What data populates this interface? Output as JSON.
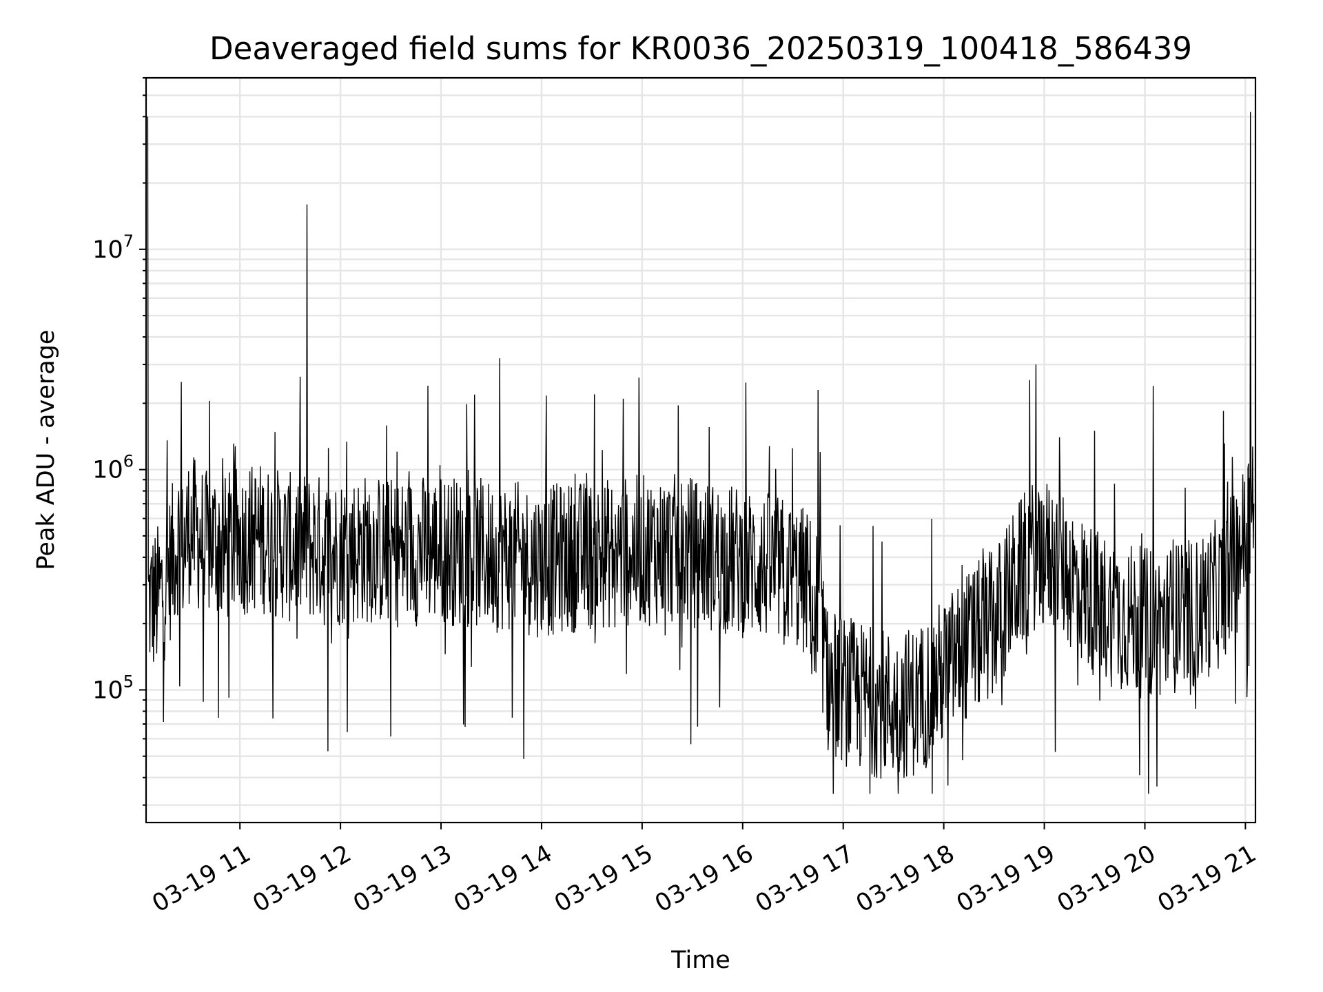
{
  "chart_data": {
    "type": "line",
    "title": "Deaveraged field sums for KR0036_20250319_100418_586439",
    "xlabel": "Time",
    "ylabel": "Peak ADU - average",
    "yscale": "log",
    "ylim": [
      25000,
      60000000
    ],
    "xlim": [
      "2025-03-19 10:04",
      "2025-03-19 21:06"
    ],
    "grid": true,
    "grid_minor": true,
    "line_color": "#000000",
    "xticks": [
      {
        "label": "03-19 11",
        "time": "2025-03-19 11:00"
      },
      {
        "label": "03-19 12",
        "time": "2025-03-19 12:00"
      },
      {
        "label": "03-19 13",
        "time": "2025-03-19 13:00"
      },
      {
        "label": "03-19 14",
        "time": "2025-03-19 14:00"
      },
      {
        "label": "03-19 15",
        "time": "2025-03-19 15:00"
      },
      {
        "label": "03-19 16",
        "time": "2025-03-19 16:00"
      },
      {
        "label": "03-19 17",
        "time": "2025-03-19 17:00"
      },
      {
        "label": "03-19 18",
        "time": "2025-03-19 18:00"
      },
      {
        "label": "03-19 19",
        "time": "2025-03-19 19:00"
      },
      {
        "label": "03-19 20",
        "time": "2025-03-19 20:00"
      },
      {
        "label": "03-19 21",
        "time": "2025-03-19 21:00"
      }
    ],
    "yticks": [
      {
        "value": 100000,
        "base": "10",
        "exp": "5"
      },
      {
        "value": 1000000,
        "base": "10",
        "exp": "6"
      },
      {
        "value": 10000000,
        "base": "10",
        "exp": "7"
      }
    ],
    "series": [
      {
        "x": [
          "2025-03-19 10:05",
          "2025-03-19 10:10",
          "2025-03-19 10:15",
          "2025-03-19 10:20",
          "2025-03-19 10:25",
          "2025-03-19 10:30",
          "2025-03-19 10:35",
          "2025-03-19 10:40",
          "2025-03-19 10:45",
          "2025-03-19 10:50",
          "2025-03-19 10:55",
          "2025-03-19 11:00",
          "2025-03-19 11:10",
          "2025-03-19 11:20",
          "2025-03-19 11:30",
          "2025-03-19 11:40",
          "2025-03-19 11:45",
          "2025-03-19 11:50",
          "2025-03-19 12:00",
          "2025-03-19 12:15",
          "2025-03-19 12:30",
          "2025-03-19 12:45",
          "2025-03-19 13:00",
          "2025-03-19 13:15",
          "2025-03-19 13:30",
          "2025-03-19 13:35",
          "2025-03-19 13:45",
          "2025-03-19 14:00",
          "2025-03-19 14:15",
          "2025-03-19 14:30",
          "2025-03-19 14:45",
          "2025-03-19 15:00",
          "2025-03-19 15:15",
          "2025-03-19 15:30",
          "2025-03-19 15:45",
          "2025-03-19 16:00",
          "2025-03-19 16:15",
          "2025-03-19 16:30",
          "2025-03-19 16:40",
          "2025-03-19 16:45",
          "2025-03-19 16:50",
          "2025-03-19 17:00",
          "2025-03-19 17:15",
          "2025-03-19 17:30",
          "2025-03-19 17:45",
          "2025-03-19 18:00",
          "2025-03-19 18:15",
          "2025-03-19 18:30",
          "2025-03-19 18:45",
          "2025-03-19 18:55",
          "2025-03-19 19:00",
          "2025-03-19 19:10",
          "2025-03-19 19:20",
          "2025-03-19 19:30",
          "2025-03-19 19:45",
          "2025-03-19 20:00",
          "2025-03-19 20:05",
          "2025-03-19 20:15",
          "2025-03-19 20:30",
          "2025-03-19 20:45",
          "2025-03-19 20:55",
          "2025-03-19 21:00",
          "2025-03-19 21:03",
          "2025-03-19 21:05"
        ],
        "y": [
          40000000,
          250000,
          300000,
          400000,
          2500000,
          550000,
          500000,
          450000,
          480000,
          420000,
          460000,
          470000,
          500000,
          470000,
          440000,
          16000000,
          450000,
          420000,
          430000,
          440000,
          420000,
          430000,
          440000,
          420000,
          410000,
          3200000,
          400000,
          380000,
          400000,
          410000,
          420000,
          430000,
          440000,
          420000,
          400000,
          380000,
          360000,
          330000,
          300000,
          2300000,
          110000,
          100000,
          90000,
          85000,
          90000,
          120000,
          160000,
          200000,
          330000,
          3000000,
          420000,
          380000,
          300000,
          250000,
          220000,
          200000,
          2400000,
          210000,
          220000,
          280000,
          400000,
          500000,
          42000000,
          700000
        ]
      }
    ]
  }
}
